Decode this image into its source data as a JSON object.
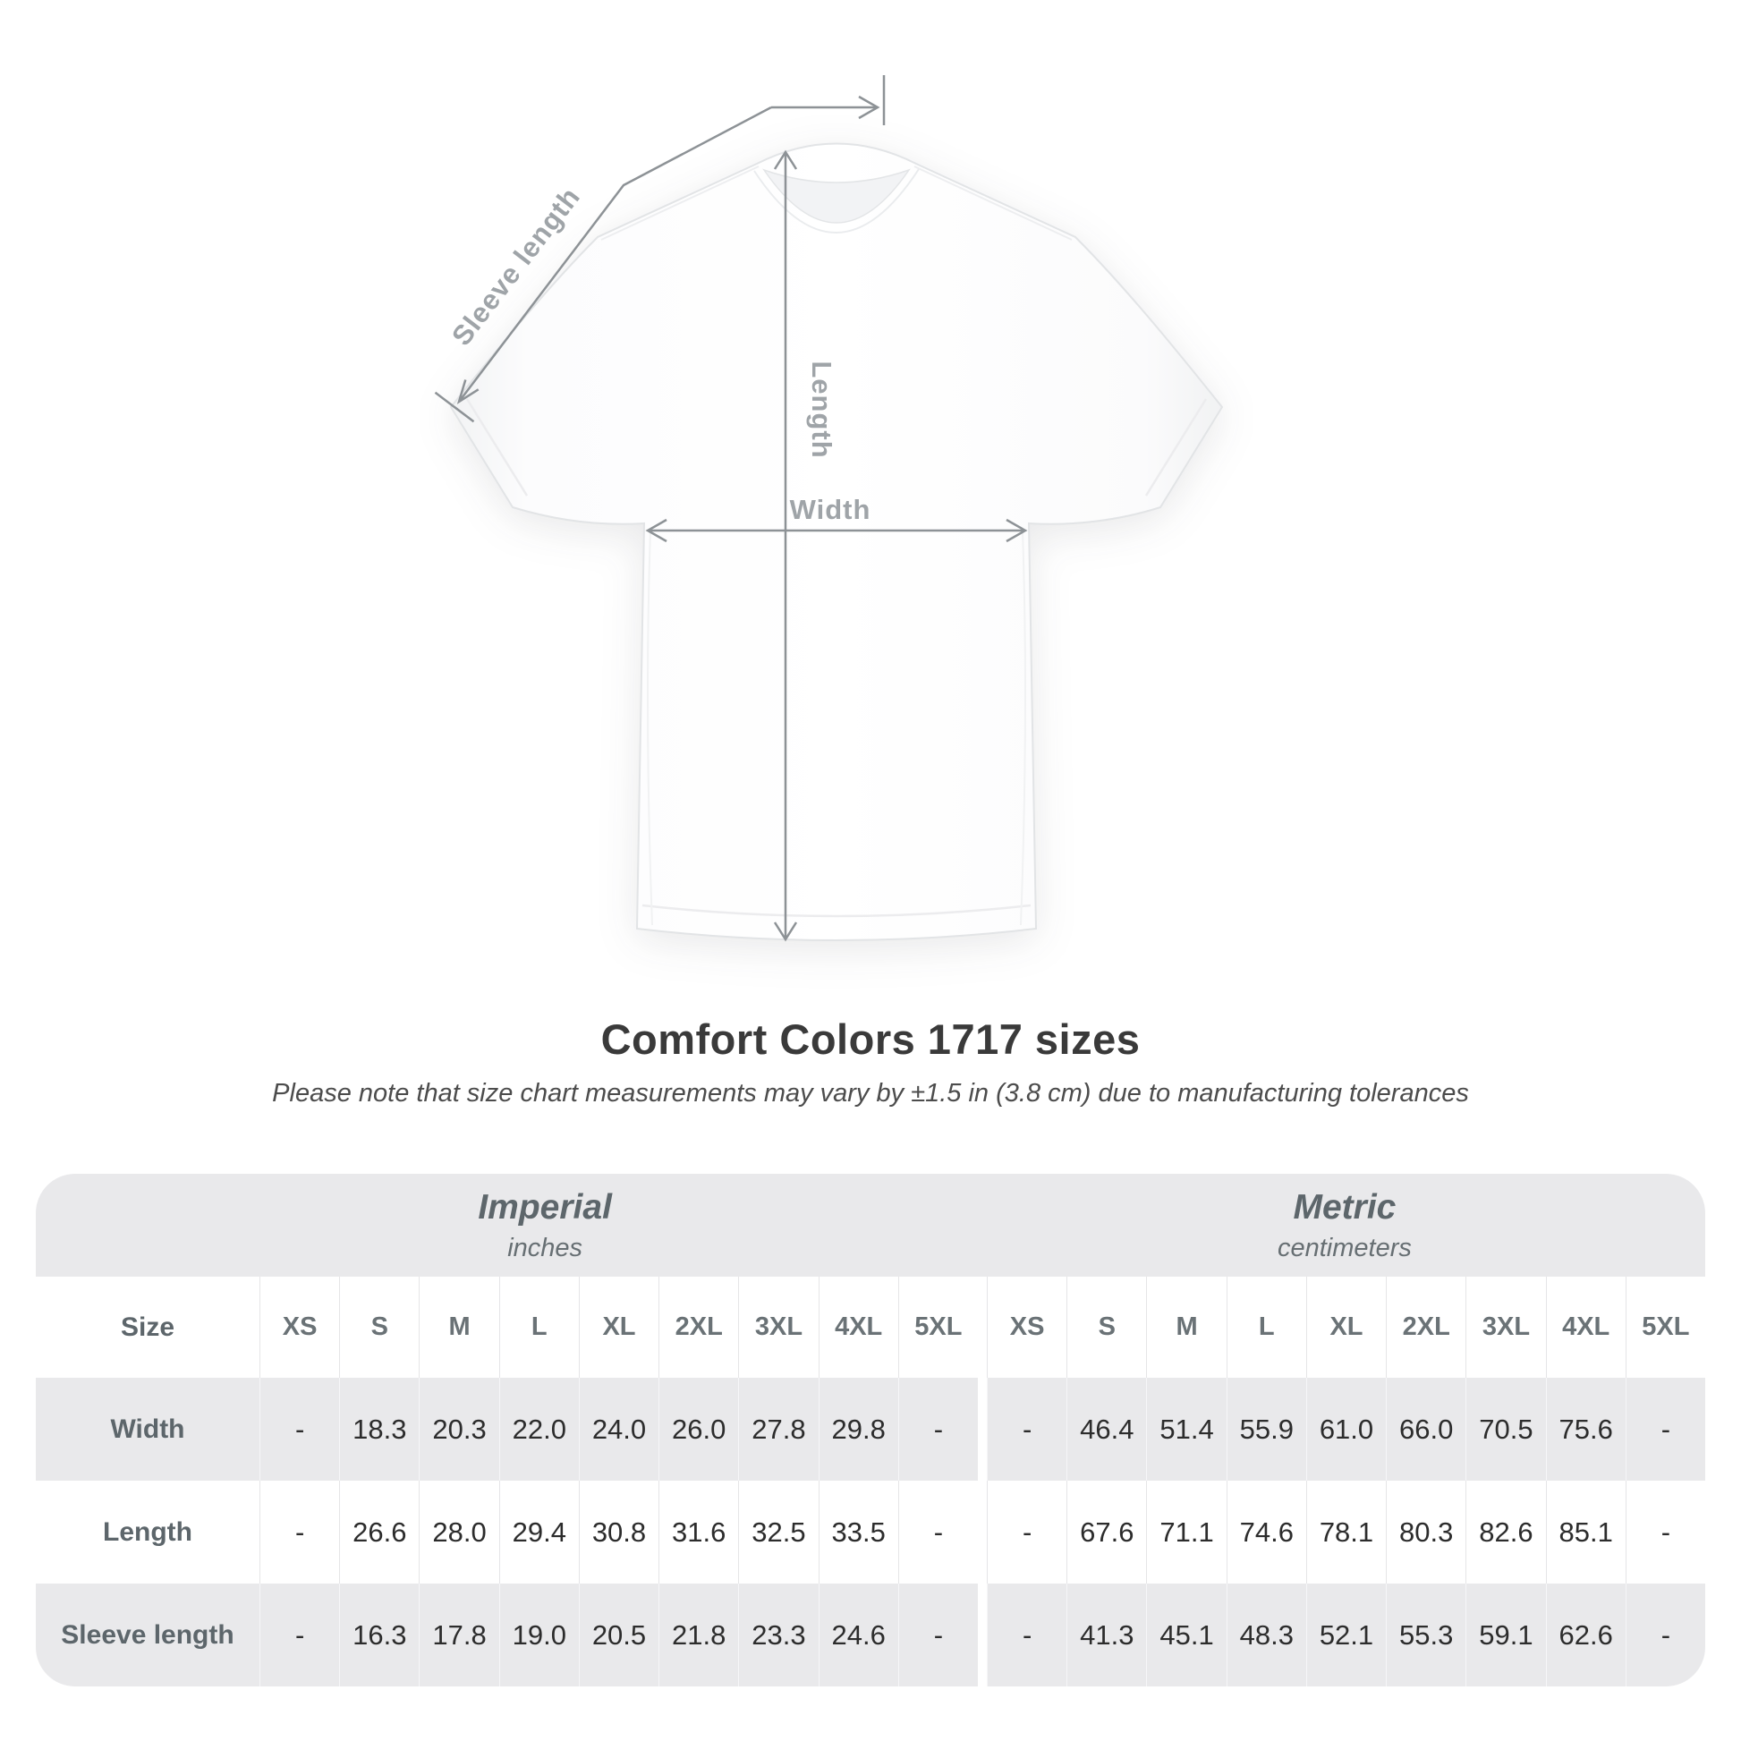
{
  "title": "Comfort Colors 1717 sizes",
  "subtitle": "Please note that size chart measurements may vary by ±1.5 in (3.8 cm) due to manufacturing tolerances",
  "diagram": {
    "labels": {
      "sleeve_length": "Sleeve length",
      "length": "Length",
      "width": "Width"
    }
  },
  "colors": {
    "annotation_line": "#8d9296",
    "annotation_label": "#9fa4a8",
    "table_gray": "#e9e9eb",
    "heading_slate": "#5d666b",
    "value_text": "#2c2c2c",
    "title_text": "#3a3a3a"
  },
  "chart_data": {
    "type": "table",
    "title": "Comfort Colors 1717 sizes",
    "subtitle": "Please note that size chart measurements may vary by ±1.5 in (3.8 cm) due to manufacturing tolerances",
    "size_header_label": "Size",
    "sizes": [
      "XS",
      "S",
      "M",
      "L",
      "XL",
      "2XL",
      "3XL",
      "4XL",
      "5XL"
    ],
    "groups": [
      {
        "label": "Imperial",
        "unit": "inches"
      },
      {
        "label": "Metric",
        "unit": "centimeters"
      }
    ],
    "rows": [
      {
        "label": "Width",
        "imperial": [
          "-",
          "18.3",
          "20.3",
          "22.0",
          "24.0",
          "26.0",
          "27.8",
          "29.8",
          "-"
        ],
        "metric": [
          "-",
          "46.4",
          "51.4",
          "55.9",
          "61.0",
          "66.0",
          "70.5",
          "75.6",
          "-"
        ]
      },
      {
        "label": "Length",
        "imperial": [
          "-",
          "26.6",
          "28.0",
          "29.4",
          "30.8",
          "31.6",
          "32.5",
          "33.5",
          "-"
        ],
        "metric": [
          "-",
          "67.6",
          "71.1",
          "74.6",
          "78.1",
          "80.3",
          "82.6",
          "85.1",
          "-"
        ]
      },
      {
        "label": "Sleeve length",
        "imperial": [
          "-",
          "16.3",
          "17.8",
          "19.0",
          "20.5",
          "21.8",
          "23.3",
          "24.6",
          "-"
        ],
        "metric": [
          "-",
          "41.3",
          "45.1",
          "48.3",
          "52.1",
          "55.3",
          "59.1",
          "62.6",
          "-"
        ]
      }
    ]
  }
}
